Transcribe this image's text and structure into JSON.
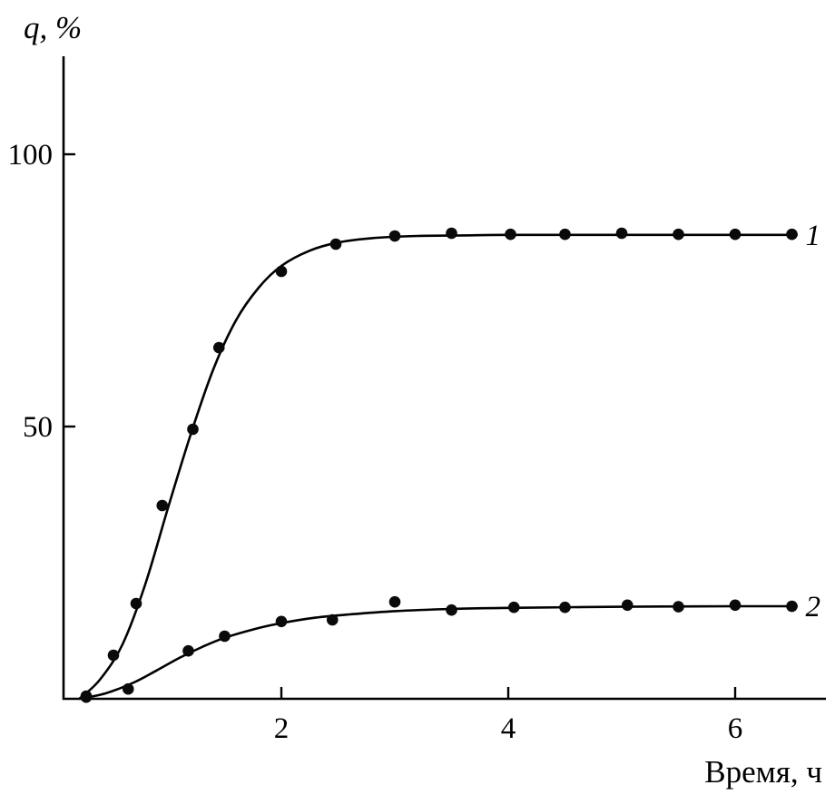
{
  "chart_data": {
    "type": "scatter",
    "title": "",
    "xlabel": "Время, ч",
    "ylabel": "q, %",
    "xlim": [
      0,
      6.8
    ],
    "ylim": [
      0,
      118
    ],
    "xticks": [
      2,
      4,
      6
    ],
    "yticks": [
      50,
      100
    ],
    "grid": false,
    "legend_position": "inline-right",
    "axis_color": "#000000",
    "point_color": "#0a0a0a",
    "series": [
      {
        "name": "1",
        "label_pos": [
          6.62,
          85.2
        ],
        "points": [
          [
            0.28,
            0.5
          ],
          [
            0.52,
            8
          ],
          [
            0.72,
            17.5
          ],
          [
            0.95,
            35.5
          ],
          [
            1.22,
            49.5
          ],
          [
            1.45,
            64.5
          ],
          [
            2.0,
            78.5
          ],
          [
            2.48,
            83.5
          ],
          [
            3.0,
            85
          ],
          [
            3.5,
            85.5
          ],
          [
            4.02,
            85.3
          ],
          [
            4.5,
            85.3
          ],
          [
            5.0,
            85.5
          ],
          [
            5.5,
            85.3
          ],
          [
            6.0,
            85.3
          ],
          [
            6.5,
            85.3
          ]
        ],
        "curve": [
          [
            0.22,
            0
          ],
          [
            0.4,
            3.5
          ],
          [
            0.6,
            10
          ],
          [
            0.8,
            21
          ],
          [
            1.0,
            35
          ],
          [
            1.2,
            48.5
          ],
          [
            1.4,
            60.5
          ],
          [
            1.6,
            69.5
          ],
          [
            1.8,
            75.5
          ],
          [
            2.0,
            79.5
          ],
          [
            2.25,
            82.3
          ],
          [
            2.5,
            83.8
          ],
          [
            2.8,
            84.6
          ],
          [
            3.2,
            85
          ],
          [
            3.6,
            85.1
          ],
          [
            4.0,
            85.2
          ],
          [
            5.0,
            85.2
          ],
          [
            6.0,
            85.2
          ],
          [
            6.55,
            85.2
          ]
        ]
      },
      {
        "name": "2",
        "label_pos": [
          6.62,
          17
        ],
        "points": [
          [
            0.28,
            0.3
          ],
          [
            0.65,
            1.8
          ],
          [
            1.18,
            8.8
          ],
          [
            1.5,
            11.5
          ],
          [
            2.0,
            14.2
          ],
          [
            2.45,
            14.5
          ],
          [
            3.0,
            17.8
          ],
          [
            3.5,
            16.3
          ],
          [
            4.05,
            16.8
          ],
          [
            4.5,
            16.8
          ],
          [
            5.05,
            17.2
          ],
          [
            5.5,
            16.9
          ],
          [
            6.0,
            17.2
          ],
          [
            6.5,
            17
          ]
        ],
        "curve": [
          [
            0.22,
            0
          ],
          [
            0.45,
            1
          ],
          [
            0.7,
            3
          ],
          [
            0.9,
            5.2
          ],
          [
            1.1,
            7.5
          ],
          [
            1.3,
            9.5
          ],
          [
            1.5,
            11.2
          ],
          [
            1.8,
            13
          ],
          [
            2.0,
            13.9
          ],
          [
            2.3,
            14.9
          ],
          [
            2.6,
            15.5
          ],
          [
            3.0,
            16.1
          ],
          [
            3.5,
            16.5
          ],
          [
            4.0,
            16.7
          ],
          [
            5.0,
            16.9
          ],
          [
            6.0,
            17
          ],
          [
            6.55,
            17
          ]
        ]
      }
    ]
  }
}
